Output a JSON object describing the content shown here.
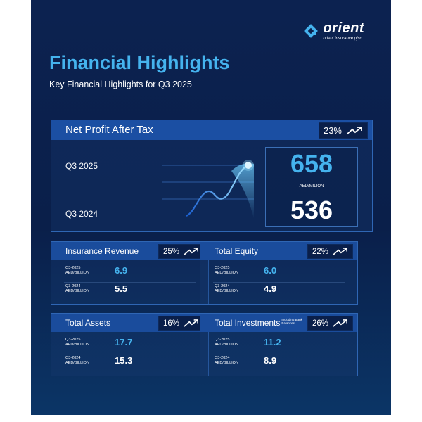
{
  "brand": {
    "name": "orient",
    "tagline": "orient insurance pjsc",
    "logo_icon": "orient-diamond-logo-icon"
  },
  "header": {
    "title": "Financial Highlights",
    "subtitle": "Key Financial Highlights for Q3 2025"
  },
  "colors": {
    "background": "#0a1f4a",
    "accent": "#45b3ee",
    "panel_header": "#1a4c9c"
  },
  "net_profit": {
    "label": "Net Profit After Tax",
    "growth": "23%",
    "growth_icon": "trend-up-arrow-icon",
    "current_period": "Q3 2025",
    "previous_period": "Q3 2024",
    "current_value": "658",
    "previous_value": "536",
    "unit": "AED/MILION"
  },
  "cards": [
    {
      "label": "Insurance Revenue",
      "note": "",
      "growth": "25%",
      "current_period": "Q3-2025",
      "previous_period": "Q3-2024",
      "unit": "AED/BILLION",
      "current_value": "6.9",
      "previous_value": "5.5"
    },
    {
      "label": "Total Equity",
      "note": "",
      "growth": "22%",
      "current_period": "Q3-2025",
      "previous_period": "Q3-2024",
      "unit": "AED/BILLION",
      "current_value": "6.0",
      "previous_value": "4.9"
    },
    {
      "label": "Total Assets",
      "note": "",
      "growth": "16%",
      "current_period": "Q3-2025",
      "previous_period": "Q3-2024",
      "unit": "AED/BILLION",
      "current_value": "17.7",
      "previous_value": "15.3"
    },
    {
      "label": "Total Investments",
      "note": "Including Bank Balances",
      "growth": "26%",
      "current_period": "Q3-2025",
      "previous_period": "Q3-2024",
      "unit": "AED/BILLION",
      "current_value": "11.2",
      "previous_value": "8.9"
    }
  ]
}
